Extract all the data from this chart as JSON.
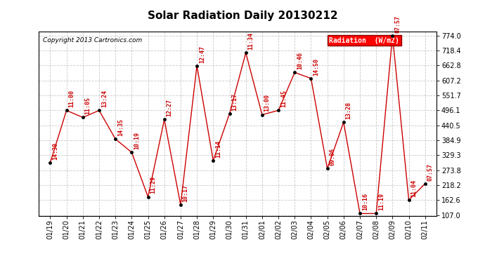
{
  "title": "Solar Radiation Daily 20130212",
  "copyright": "Copyright 2013 Cartronics.com",
  "legend_label": "Radiation  (W/m2)",
  "dates": [
    "01/19",
    "01/20",
    "01/21",
    "01/22",
    "01/23",
    "01/24",
    "01/25",
    "01/26",
    "01/27",
    "01/28",
    "01/29",
    "01/30",
    "01/31",
    "02/01",
    "02/02",
    "02/03",
    "02/04",
    "02/05",
    "02/06",
    "02/07",
    "02/08",
    "02/09",
    "02/10",
    "02/11"
  ],
  "values": [
    302,
    496,
    470,
    496,
    390,
    340,
    175,
    462,
    145,
    662,
    310,
    484,
    710,
    480,
    496,
    637,
    615,
    280,
    452,
    113,
    113,
    774,
    163,
    224
  ],
  "labels": [
    "14:30",
    "11:00",
    "11:05",
    "13:24",
    "14:35",
    "10:19",
    "11:29",
    "12:27",
    "10:17",
    "12:47",
    "11:14",
    "13:17",
    "11:34",
    "13:00",
    "11:45",
    "10:46",
    "14:50",
    "09:06",
    "13:28",
    "10:16",
    "11:19",
    "07:57",
    "11:04",
    "07:57"
  ],
  "line_color": "#cc0000",
  "marker_color": "#000000",
  "bg_color": "#ffffff",
  "grid_color": "#bbbbbb",
  "ylim_min": 107.0,
  "ylim_max": 774.0,
  "yticks": [
    107.0,
    162.6,
    218.2,
    273.8,
    329.3,
    384.9,
    440.5,
    496.1,
    551.7,
    607.2,
    662.8,
    718.4,
    774.0
  ]
}
